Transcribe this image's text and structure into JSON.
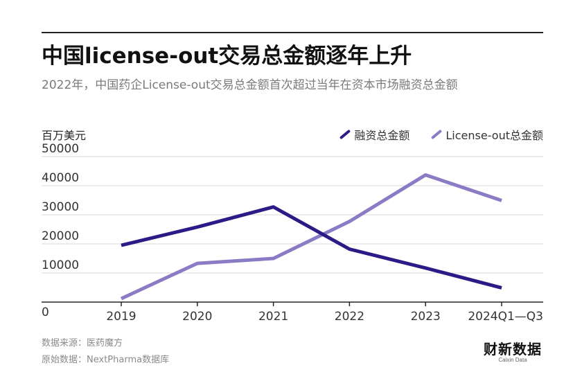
{
  "header": {
    "title": "中国license-out交易总金额逐年上升",
    "subtitle": "2022年，中国药企License-out交易总金额首次超过当年在资本市场融资总金额"
  },
  "footer": {
    "source_line1": "数据来源：医药魔方",
    "source_line2": "原始数据：NextPharma数据库",
    "logo_main": "财新数据",
    "logo_sub": "Caixin Data"
  },
  "colors": {
    "series1": "#2e1a87",
    "series2": "#8b7bc4",
    "grid": "#d9d9d9",
    "axis": "#222222"
  },
  "chart_data": {
    "type": "line",
    "unit_label": "百万美元",
    "categories": [
      "2019",
      "2020",
      "2021",
      "2022",
      "2023",
      "2024Q1—Q3"
    ],
    "y_ticks": [
      "0",
      "10000",
      "20000",
      "30000",
      "40000",
      "50000"
    ],
    "ylim": [
      0,
      50000
    ],
    "grid": true,
    "legend_position": "top-right",
    "series": [
      {
        "name": "融资总金额",
        "values": [
          19500,
          25800,
          32700,
          18200,
          11700,
          4900
        ]
      },
      {
        "name": "License-out总金额",
        "values": [
          1200,
          13300,
          15000,
          27700,
          43700,
          34900
        ]
      }
    ]
  }
}
